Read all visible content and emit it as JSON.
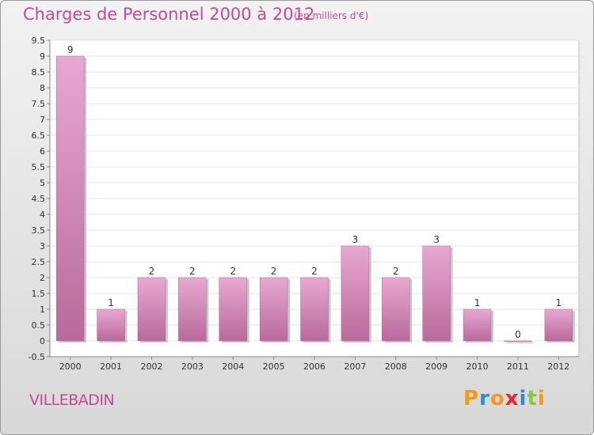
{
  "title": "Charges de Personnel 2000 à 2012",
  "subtitle": "(en milliers d'€)",
  "town": "VILLEBADIN",
  "logo": {
    "letters": [
      "P",
      "r",
      "o",
      "x",
      "i",
      "t",
      "i"
    ],
    "colors": [
      "#f39a1a",
      "#2b8fd6",
      "#f39a1a",
      "#e8262b",
      "#2b8fd6",
      "#8cc63f",
      "#f39a1a"
    ]
  },
  "colors": {
    "bar": "#d98cbc",
    "text": "#c24a96"
  },
  "chart_data": {
    "type": "bar",
    "categories": [
      "2000",
      "2001",
      "2002",
      "2003",
      "2004",
      "2005",
      "2006",
      "2007",
      "2008",
      "2009",
      "2010",
      "2011",
      "2012"
    ],
    "values": [
      9,
      1,
      2,
      2,
      2,
      2,
      2,
      3,
      2,
      3,
      1,
      0,
      1
    ],
    "data_labels": [
      "9",
      "1",
      "2",
      "2",
      "2",
      "2",
      "2",
      "3",
      "2",
      "3",
      "1",
      "0",
      "1"
    ],
    "ylim": [
      -0.5,
      9.5
    ],
    "y_ticks": [
      "9.5",
      "9",
      "8.5",
      "8",
      "7.5",
      "7",
      "6.5",
      "6",
      "5.5",
      "5",
      "4.5",
      "4",
      "3.5",
      "3",
      "2.5",
      "2",
      "1.5",
      "1",
      "0.5",
      "0",
      "-0.5"
    ],
    "grid": true
  }
}
